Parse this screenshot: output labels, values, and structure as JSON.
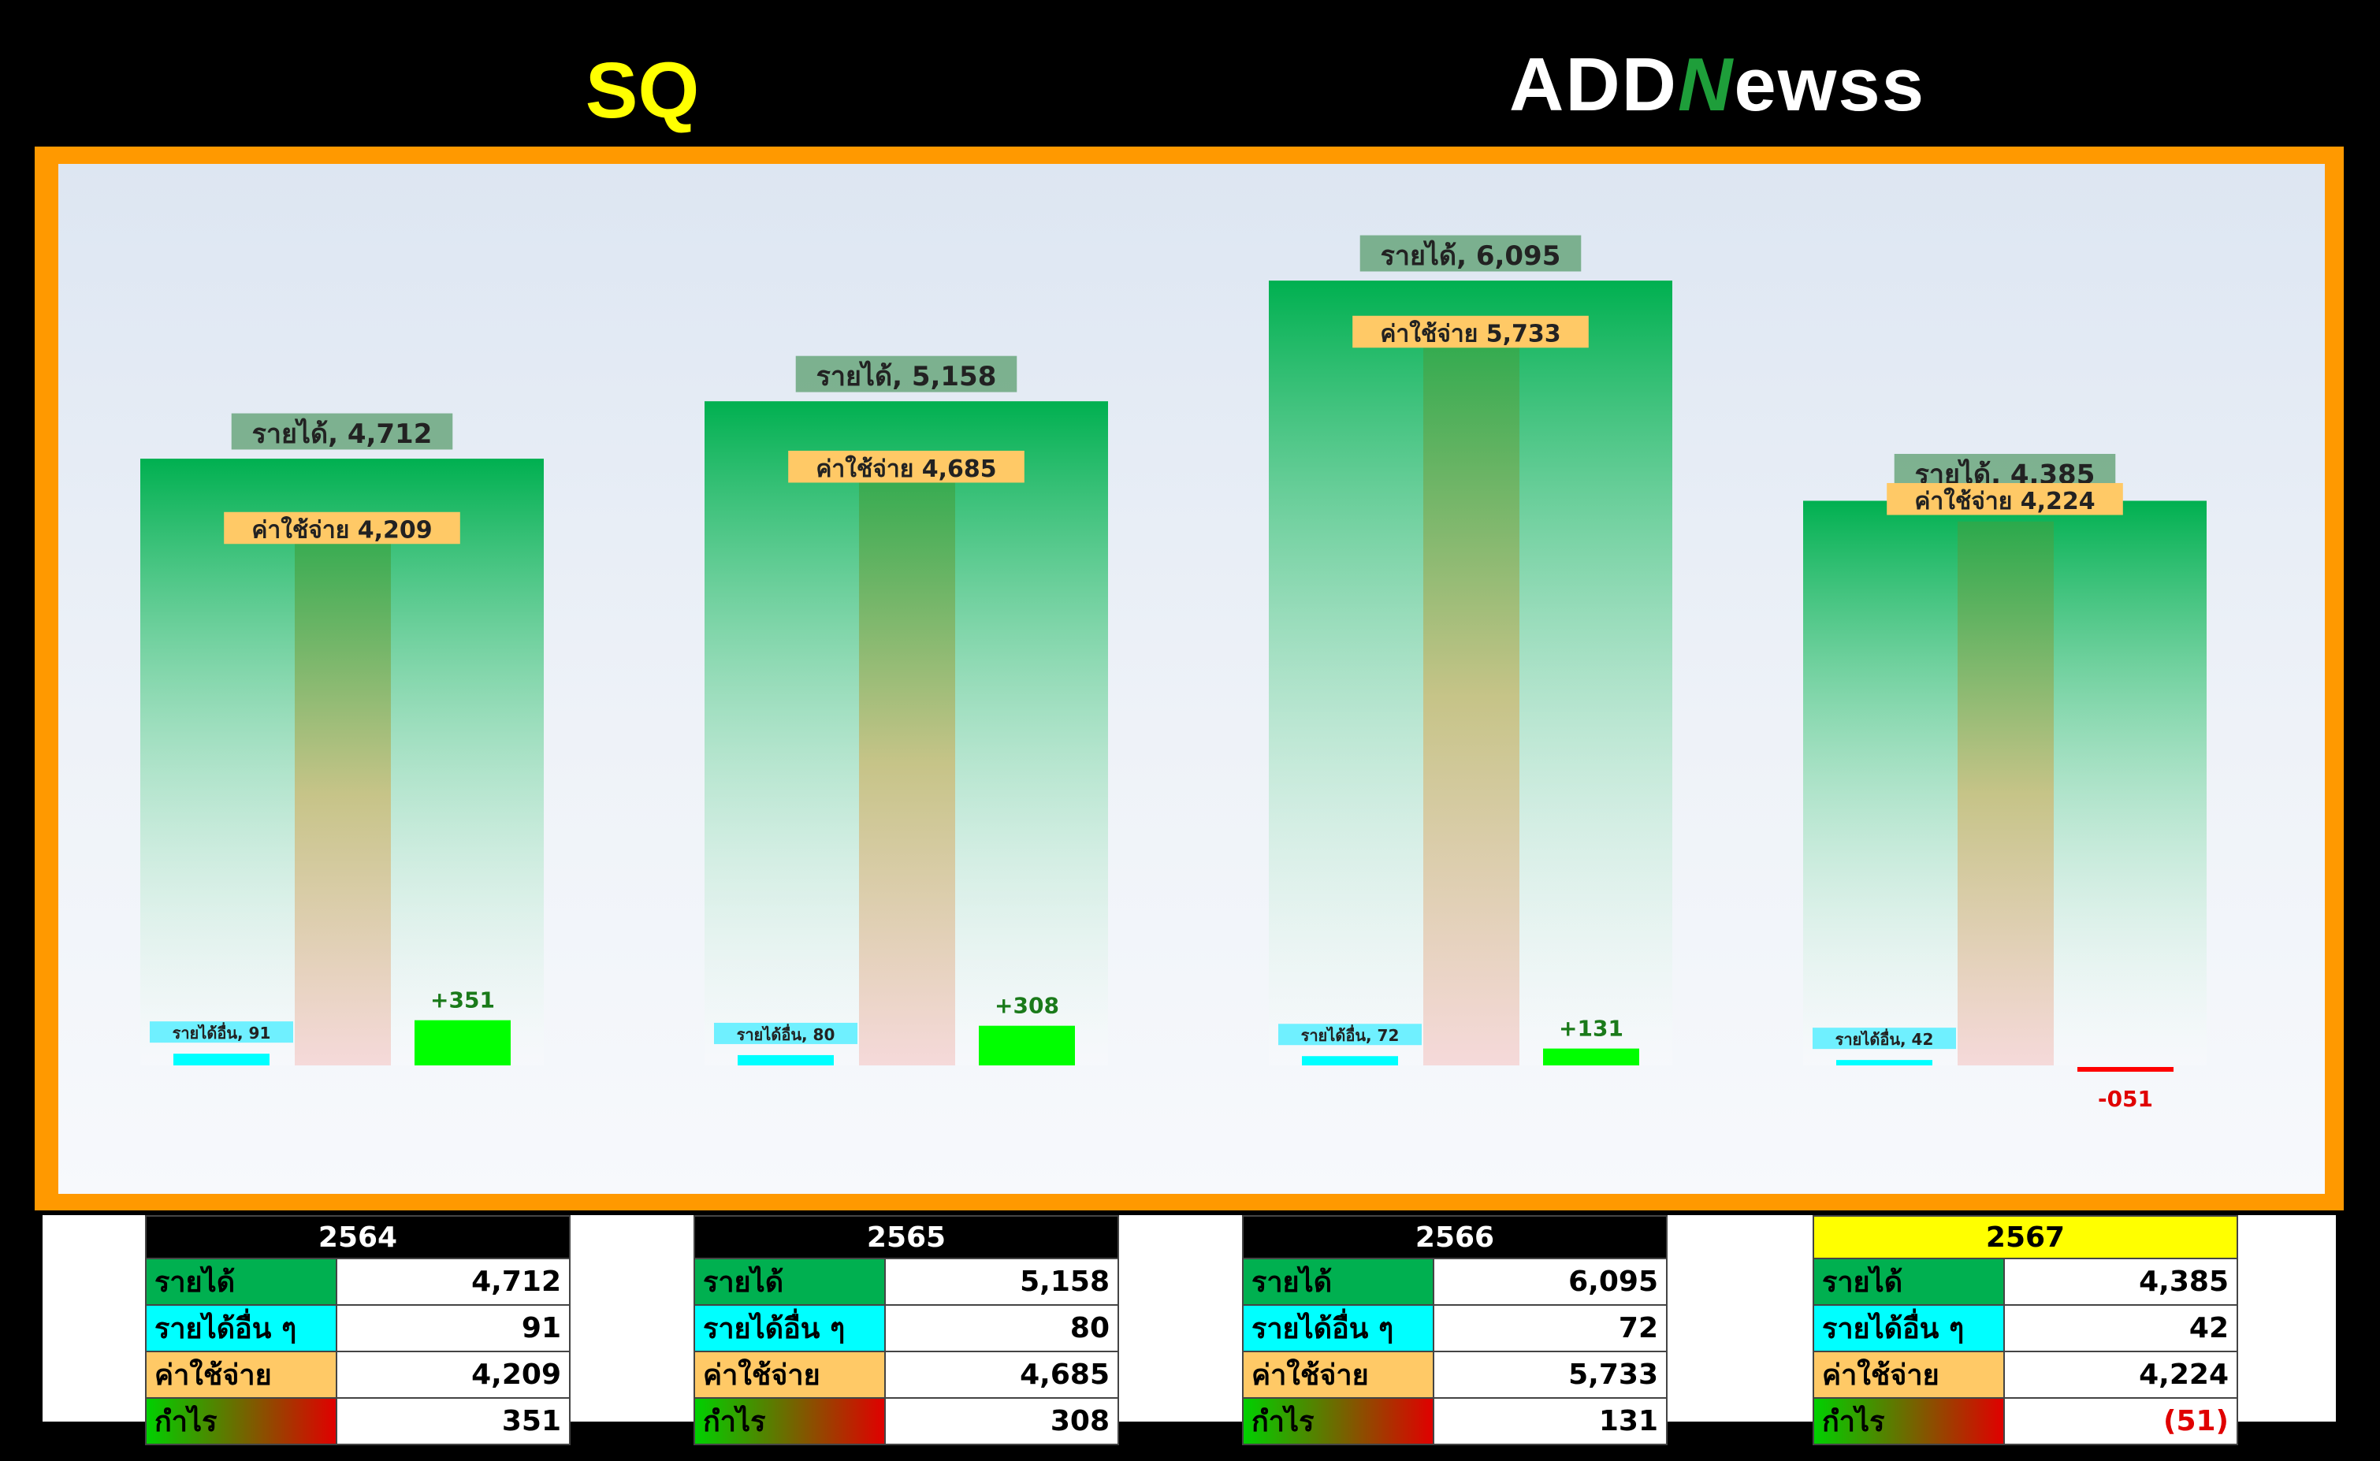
{
  "title": "SQ",
  "logo": {
    "text_a": "ADD",
    "text_b": "N",
    "text_c": "ewss"
  },
  "colors": {
    "revenue": "#00b050",
    "other_income": "#00ffff",
    "expense": "#ffc966",
    "profit_pos": "#00ff00",
    "profit_neg": "#ff0000",
    "frame": "#ff9900",
    "highlight_year": "#ffff00"
  },
  "chart_data": {
    "type": "bar",
    "categories": [
      "2564",
      "2565",
      "2566",
      "2567"
    ],
    "series": [
      {
        "name": "รายได้",
        "values": [
          4712,
          5158,
          6095,
          4385
        ]
      },
      {
        "name": "รายได้อื่น",
        "values": [
          91,
          80,
          72,
          42
        ]
      },
      {
        "name": "ค่าใช้จ่าย",
        "values": [
          4209,
          4685,
          5733,
          4224
        ]
      },
      {
        "name": "กำไร",
        "values": [
          351,
          308,
          131,
          -51
        ]
      }
    ],
    "data_labels": {
      "revenue": [
        "รายได้,  4,712",
        "รายได้,  5,158",
        "รายได้,  6,095",
        "รายได้,  4,385"
      ],
      "other": [
        "รายได้อื่น,  91",
        "รายได้อื่น,  80",
        "รายได้อื่น,  72",
        "รายได้อื่น,  42"
      ],
      "expense": [
        "ค่าใช้จ่าย  4,209",
        "ค่าใช้จ่าย  4,685",
        "ค่าใช้จ่าย  5,733",
        "ค่าใช้จ่าย  4,224"
      ],
      "profit": [
        "+351",
        "+308",
        "+131",
        "-051"
      ]
    },
    "ylim": [
      -300,
      6600
    ],
    "grid": false,
    "legend": "none"
  },
  "tables": [
    {
      "year": "2564",
      "highlight": false,
      "rows": [
        {
          "label": "รายได้",
          "value": "4,712"
        },
        {
          "label": "รายได้อื่น ๆ",
          "value": "91"
        },
        {
          "label": "ค่าใช้จ่าย",
          "value": "4,209"
        },
        {
          "label": "กำไร",
          "value": "351"
        }
      ]
    },
    {
      "year": "2565",
      "highlight": false,
      "rows": [
        {
          "label": "รายได้",
          "value": "5,158"
        },
        {
          "label": "รายได้อื่น ๆ",
          "value": "80"
        },
        {
          "label": "ค่าใช้จ่าย",
          "value": "4,685"
        },
        {
          "label": "กำไร",
          "value": "308"
        }
      ]
    },
    {
      "year": "2566",
      "highlight": false,
      "rows": [
        {
          "label": "รายได้",
          "value": "6,095"
        },
        {
          "label": "รายได้อื่น ๆ",
          "value": "72"
        },
        {
          "label": "ค่าใช้จ่าย",
          "value": "5,733"
        },
        {
          "label": "กำไร",
          "value": "131"
        }
      ]
    },
    {
      "year": "2567",
      "highlight": true,
      "rows": [
        {
          "label": "รายได้",
          "value": "4,385"
        },
        {
          "label": "รายได้อื่น ๆ",
          "value": "42"
        },
        {
          "label": "ค่าใช้จ่าย",
          "value": "4,224"
        },
        {
          "label": "กำไร",
          "value": "(51)"
        }
      ]
    }
  ]
}
